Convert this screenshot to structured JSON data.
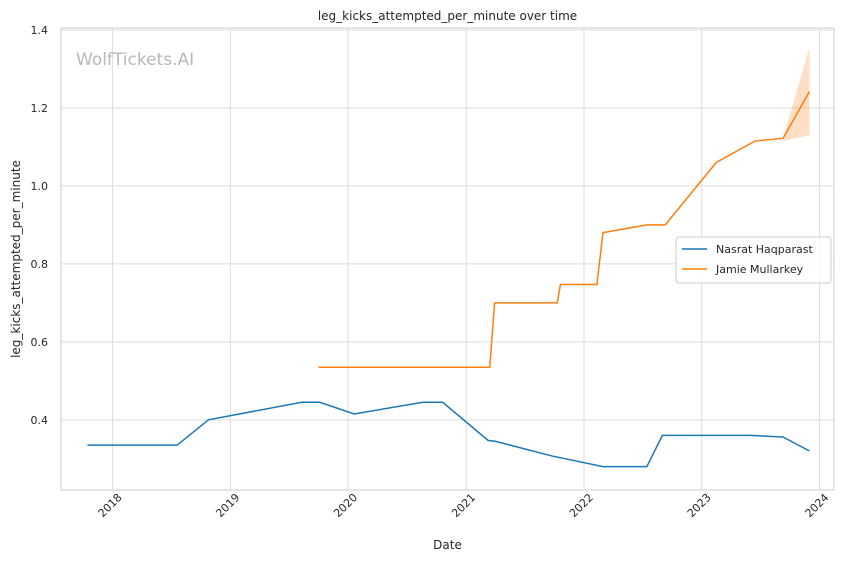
{
  "chart_data": {
    "type": "line",
    "title": "leg_kicks_attempted_per_minute over time",
    "xlabel": "Date",
    "ylabel": "leg_kicks_attempted_per_minute",
    "watermark": "WolfTickets.AI",
    "x_ticks": [
      "2018",
      "2019",
      "2020",
      "2021",
      "2022",
      "2023",
      "2024"
    ],
    "y_ticks": [
      "0.4",
      "0.6",
      "0.8",
      "1.0",
      "1.2",
      "1.4"
    ],
    "xlim": [
      "2017-07-25",
      "2024-02-15"
    ],
    "ylim": [
      0.22,
      1.405
    ],
    "grid": true,
    "legend_position": "center-right",
    "series": [
      {
        "name": "Nasrat Haqparast",
        "color": "#1f77b4",
        "points": [
          [
            "2017-10-15",
            0.335
          ],
          [
            "2018-07-20",
            0.335
          ],
          [
            "2018-10-25",
            0.4
          ],
          [
            "2019-08-10",
            0.445
          ],
          [
            "2019-10-05",
            0.445
          ],
          [
            "2020-01-20",
            0.415
          ],
          [
            "2020-08-20",
            0.445
          ],
          [
            "2020-10-20",
            0.445
          ],
          [
            "2021-03-10",
            0.347
          ],
          [
            "2021-04-01",
            0.345
          ],
          [
            "2021-09-25",
            0.307
          ],
          [
            "2022-03-01",
            0.28
          ],
          [
            "2022-07-15",
            0.28
          ],
          [
            "2022-09-01",
            0.36
          ],
          [
            "2023-06-01",
            0.36
          ],
          [
            "2023-09-10",
            0.356
          ],
          [
            "2023-12-01",
            0.32
          ]
        ]
      },
      {
        "name": "Jamie Mullarkey",
        "color": "#ff7f0e",
        "points": [
          [
            "2019-10-01",
            0.535
          ],
          [
            "2021-03-15",
            0.535
          ],
          [
            "2021-03-30",
            0.7
          ],
          [
            "2021-10-10",
            0.7
          ],
          [
            "2021-10-20",
            0.747
          ],
          [
            "2022-02-10",
            0.747
          ],
          [
            "2022-03-01",
            0.88
          ],
          [
            "2022-07-15",
            0.9
          ],
          [
            "2022-09-10",
            0.9
          ],
          [
            "2023-02-15",
            1.06
          ],
          [
            "2023-06-15",
            1.115
          ],
          [
            "2023-09-10",
            1.122
          ],
          [
            "2023-12-01",
            1.242
          ]
        ],
        "band": [
          [
            "2023-09-10",
            1.115,
            1.122
          ],
          [
            "2023-12-01",
            1.13,
            1.355
          ]
        ]
      }
    ]
  }
}
